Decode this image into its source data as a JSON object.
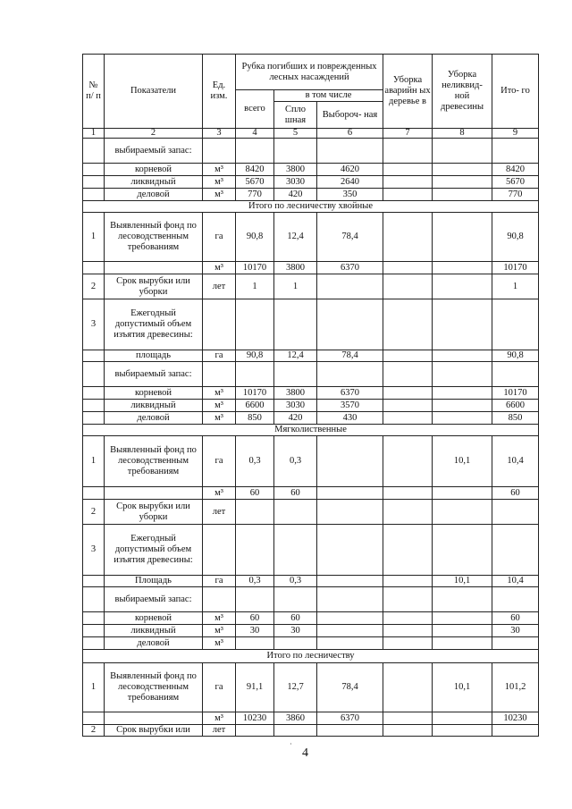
{
  "header": {
    "num": "№ п/ п",
    "indicator": "Показатели",
    "unit": "Ед. изм.",
    "felling": "Рубка погибших и поврежденных лесных насаждений",
    "including": "в том числе",
    "total": "всего",
    "clear": "Спло шная",
    "selective": "Выбороч- ная",
    "emergency": "Уборка аварийн ых деревье в",
    "illiquid": "Уборка неликвид- ной древесины",
    "grand_total": "Ито- го"
  },
  "column_numbers": [
    "1",
    "2",
    "3",
    "4",
    "5",
    "6",
    "7",
    "8",
    "9"
  ],
  "rows": [
    {
      "h": 28,
      "cells": [
        "",
        "выбираемый запас:",
        "",
        "",
        "",
        "",
        "",
        "",
        ""
      ]
    },
    {
      "h": 14,
      "cells": [
        "",
        "корневой",
        "м³",
        "8420",
        "3800",
        "4620",
        "",
        "",
        "8420"
      ]
    },
    {
      "h": 14,
      "cells": [
        "",
        "ликвидный",
        "м³",
        "5670",
        "3030",
        "2640",
        "",
        "",
        "5670"
      ]
    },
    {
      "h": 14,
      "cells": [
        "",
        "деловой",
        "м³",
        "770",
        "420",
        "350",
        "",
        "",
        "770"
      ]
    },
    {
      "h": 13,
      "section": "Итого по лесничеству хвойные"
    },
    {
      "h": 55,
      "cells": [
        "1",
        "Выявленный фонд по лесоводственным требованиям",
        "га",
        "90,8",
        "12,4",
        "78,4",
        "",
        "",
        "90,8"
      ]
    },
    {
      "h": 14,
      "cells": [
        "",
        "",
        "м³",
        "10170",
        "3800",
        "6370",
        "",
        "",
        "10170"
      ]
    },
    {
      "h": 28,
      "cells": [
        "2",
        "Срок вырубки или уборки",
        "лет",
        "1",
        "1",
        "",
        "",
        "",
        "1"
      ]
    },
    {
      "h": 57,
      "cells": [
        "3",
        "Ежегодный допустимый объем изъятия древесины:",
        "",
        "",
        "",
        "",
        "",
        "",
        ""
      ]
    },
    {
      "h": 13,
      "cells": [
        "",
        "площадь",
        "га",
        "90,8",
        "12,4",
        "78,4",
        "",
        "",
        "90,8"
      ]
    },
    {
      "h": 28,
      "cells": [
        "",
        "выбираемый запас:",
        "",
        "",
        "",
        "",
        "",
        "",
        ""
      ]
    },
    {
      "h": 14,
      "cells": [
        "",
        "корневой",
        "м³",
        "10170",
        "3800",
        "6370",
        "",
        "",
        "10170"
      ]
    },
    {
      "h": 14,
      "cells": [
        "",
        "ликвидный",
        "м³",
        "6600",
        "3030",
        "3570",
        "",
        "",
        "6600"
      ]
    },
    {
      "h": 14,
      "cells": [
        "",
        "деловой",
        "м³",
        "850",
        "420",
        "430",
        "",
        "",
        "850"
      ]
    },
    {
      "h": 13,
      "section": "Мягколиственные"
    },
    {
      "h": 57,
      "cells": [
        "1",
        "Выявленный фонд по лесоводственным требованиям",
        "га",
        "0,3",
        "0,3",
        "",
        "",
        "10,1",
        "10,4"
      ]
    },
    {
      "h": 14,
      "cells": [
        "",
        "",
        "м³",
        "60",
        "60",
        "",
        "",
        "",
        "60"
      ]
    },
    {
      "h": 28,
      "cells": [
        "2",
        "Срок вырубки или уборки",
        "лет",
        "",
        "",
        "",
        "",
        "",
        ""
      ]
    },
    {
      "h": 57,
      "cells": [
        "3",
        "Ежегодный допустимый объем изъятия древесины:",
        "",
        "",
        "",
        "",
        "",
        "",
        ""
      ]
    },
    {
      "h": 13,
      "cells": [
        "",
        "Площадь",
        "га",
        "0,3",
        "0,3",
        "",
        "",
        "10,1",
        "10,4"
      ]
    },
    {
      "h": 28,
      "cells": [
        "",
        "выбираемый запас:",
        "",
        "",
        "",
        "",
        "",
        "",
        ""
      ]
    },
    {
      "h": 14,
      "cells": [
        "",
        "корневой",
        "м³",
        "60",
        "60",
        "",
        "",
        "",
        "60"
      ]
    },
    {
      "h": 14,
      "cells": [
        "",
        "ликвидный",
        "м³",
        "30",
        "30",
        "",
        "",
        "",
        "30"
      ]
    },
    {
      "h": 14,
      "cells": [
        "",
        "деловой",
        "м³",
        "",
        "",
        "",
        "",
        "",
        ""
      ]
    },
    {
      "h": 15,
      "section": "Итого по лесничеству"
    },
    {
      "h": 55,
      "cells": [
        "1",
        "Выявленный фонд по лесоводственным требованиям",
        "га",
        "91,1",
        "12,7",
        "78,4",
        "",
        "10,1",
        "101,2"
      ]
    },
    {
      "h": 14,
      "cells": [
        "",
        "",
        "м³",
        "10230",
        "3860",
        "6370",
        "",
        "",
        "10230"
      ]
    },
    {
      "h": 12,
      "cells": [
        "2",
        "Срок вырубки или",
        "лет",
        "",
        "",
        "",
        "",
        "",
        ""
      ]
    }
  ],
  "page_number": "4"
}
